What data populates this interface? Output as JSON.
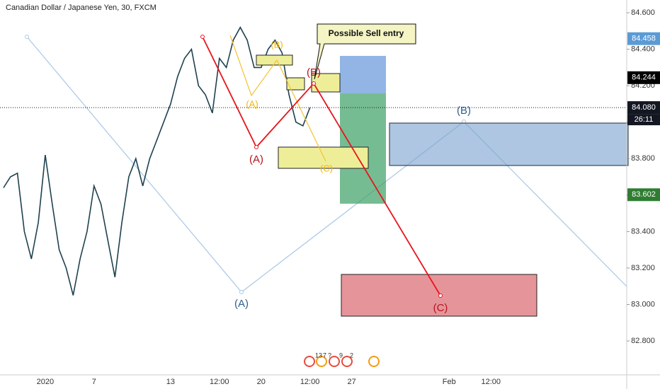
{
  "chart_data": {
    "type": "line",
    "title": "Canadian Dollar / Japanese Yen, 30, FXCM",
    "categories": [
      null,
      null,
      null,
      null,
      null,
      null,
      "2020",
      null,
      null,
      null,
      null,
      null,
      null,
      "7",
      null,
      null,
      null,
      null,
      null,
      null,
      null,
      null,
      null,
      null,
      "13",
      null,
      null,
      null,
      null,
      null,
      null,
      "12:00",
      null,
      null,
      null,
      null,
      null,
      "20",
      null,
      null,
      null,
      null,
      null,
      null,
      "12:00",
      null,
      null,
      null,
      null,
      null,
      "27",
      null,
      null,
      null,
      null,
      null,
      null,
      null,
      null,
      null,
      null,
      null,
      null,
      null,
      "Feb",
      null,
      null,
      null,
      null,
      null,
      "12:00",
      null,
      null,
      null,
      null,
      null,
      null,
      null,
      null,
      null,
      null,
      null,
      null,
      null,
      null,
      null,
      null,
      null,
      null,
      null
    ],
    "values": [
      83.64,
      83.7,
      83.72,
      83.4,
      83.25,
      83.45,
      83.82,
      83.55,
      83.3,
      83.2,
      83.05,
      83.25,
      83.4,
      83.65,
      83.55,
      83.35,
      83.15,
      83.45,
      83.7,
      83.8,
      83.65,
      83.8,
      83.9,
      84.0,
      84.1,
      84.25,
      84.35,
      84.4,
      84.2,
      84.15,
      84.05,
      84.35,
      84.3,
      84.45,
      84.52,
      84.45,
      84.3,
      84.3,
      84.4,
      84.45,
      84.38,
      84.15,
      84.0,
      83.98,
      84.08,
      null,
      null,
      null,
      null,
      null,
      null,
      null,
      null,
      null,
      null,
      null,
      null,
      null,
      null,
      null,
      null,
      null,
      null,
      null,
      null,
      null,
      null,
      null,
      null,
      null,
      null,
      null,
      null,
      null,
      null,
      null,
      null,
      null,
      null,
      null,
      null,
      null,
      null,
      null,
      null,
      null,
      null,
      null,
      null,
      null
    ],
    "color": "#1f4150",
    "ylim": [
      82.614,
      84.67
    ],
    "yticks": [
      {
        "value": 82.8,
        "label": "82.800"
      },
      {
        "value": 83.0,
        "label": "83.000"
      },
      {
        "value": 83.2,
        "label": "83.200"
      },
      {
        "value": 83.4,
        "label": "83.400"
      },
      {
        "value": 83.6,
        "label": "83.600"
      },
      {
        "value": 83.8,
        "label": "83.800"
      },
      {
        "value": 84.0,
        "label": "84.000"
      },
      {
        "value": 84.2,
        "label": "84.200"
      },
      {
        "value": 84.4,
        "label": "84.400"
      },
      {
        "value": 84.6,
        "label": "84.600"
      }
    ],
    "grid": false,
    "price_labels": [
      {
        "value": 84.458,
        "label": "84.458",
        "color": "#5b9bd5"
      },
      {
        "value": 84.244,
        "label": "84.244",
        "color": "#000000"
      },
      {
        "value": 84.08,
        "label": "84.080",
        "color": "#131722"
      },
      {
        "value": 83.602,
        "label": "83.602",
        "color": "#2e7d32"
      }
    ],
    "countdown": "26:11",
    "annotation": "Possible Sell entry",
    "wave_labels": [
      "(A)",
      "(B)",
      "(C)",
      "(A)",
      "(B)",
      "(C)",
      "(A)",
      "(B)"
    ],
    "events": [
      "13",
      "7",
      "?",
      "9",
      "2"
    ]
  }
}
